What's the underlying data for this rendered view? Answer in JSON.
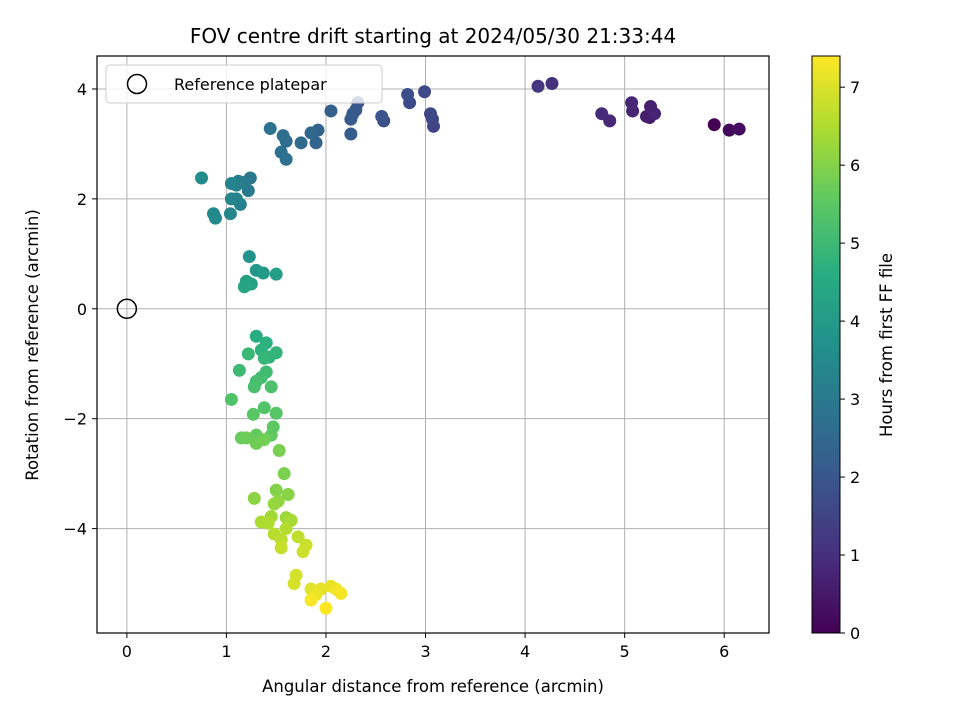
{
  "chart_data": {
    "type": "scatter",
    "title": "FOV centre drift starting at 2024/05/30 21:33:44",
    "xlabel": "Angular distance from reference (arcmin)",
    "ylabel": "Rotation from reference (arcmin)",
    "xlim": [
      -0.3,
      6.45
    ],
    "ylim": [
      -5.9,
      4.6
    ],
    "xticks": [
      0,
      1,
      2,
      3,
      4,
      5,
      6
    ],
    "yticks": [
      -4,
      -2,
      0,
      2,
      4
    ],
    "ytick_labels": [
      "−4",
      "−2",
      "0",
      "2",
      "4"
    ],
    "grid": true,
    "legend": {
      "position": "top-left",
      "entries": [
        "Reference platepar"
      ]
    },
    "reference_point": {
      "x": 0,
      "y": 0,
      "label": "Reference platepar"
    },
    "colorbar": {
      "label": "Hours from first FF file",
      "colormap": "viridis",
      "range": [
        0,
        7.4
      ],
      "ticks": [
        0,
        1,
        2,
        3,
        4,
        5,
        6,
        7
      ]
    },
    "series": [
      {
        "points": [
          [
            5.9,
            3.35,
            0.0
          ],
          [
            6.05,
            3.25,
            0.15
          ],
          [
            6.15,
            3.27,
            0.25
          ],
          [
            5.28,
            3.55,
            0.5
          ],
          [
            5.25,
            3.48,
            0.55
          ],
          [
            5.22,
            3.5,
            0.6
          ],
          [
            5.26,
            3.68,
            0.65
          ],
          [
            5.3,
            3.55,
            0.7
          ],
          [
            5.08,
            3.6,
            0.75
          ],
          [
            5.07,
            3.75,
            0.8
          ],
          [
            4.85,
            3.42,
            0.85
          ],
          [
            4.77,
            3.55,
            0.9
          ],
          [
            4.27,
            4.1,
            1.05
          ],
          [
            4.13,
            4.05,
            1.15
          ],
          [
            3.08,
            3.32,
            1.5
          ],
          [
            3.07,
            3.45,
            1.55
          ],
          [
            3.05,
            3.55,
            1.6
          ],
          [
            2.99,
            3.95,
            1.65
          ],
          [
            2.84,
            3.75,
            1.7
          ],
          [
            2.82,
            3.9,
            1.75
          ],
          [
            2.58,
            3.42,
            1.8
          ],
          [
            2.56,
            3.5,
            1.85
          ],
          [
            2.32,
            3.75,
            1.95
          ],
          [
            2.3,
            3.62,
            2.0
          ],
          [
            2.27,
            3.55,
            2.05
          ],
          [
            2.25,
            3.45,
            2.1
          ],
          [
            2.25,
            3.18,
            2.15
          ],
          [
            2.05,
            3.6,
            2.25
          ],
          [
            1.92,
            3.25,
            2.35
          ],
          [
            1.9,
            3.02,
            2.4
          ],
          [
            1.85,
            3.2,
            2.45
          ],
          [
            1.75,
            3.02,
            2.55
          ],
          [
            1.6,
            3.05,
            2.6
          ],
          [
            1.57,
            3.15,
            2.65
          ],
          [
            1.55,
            2.85,
            2.7
          ],
          [
            1.6,
            2.72,
            2.75
          ],
          [
            1.44,
            3.28,
            2.8
          ],
          [
            1.24,
            2.38,
            2.95
          ],
          [
            1.22,
            2.15,
            3.0
          ],
          [
            1.18,
            2.3,
            3.05
          ],
          [
            1.12,
            2.32,
            3.1
          ],
          [
            1.1,
            2.25,
            3.15
          ],
          [
            1.14,
            1.9,
            3.2
          ],
          [
            1.1,
            2.0,
            3.25
          ],
          [
            1.05,
            2.28,
            3.3
          ],
          [
            1.05,
            2.0,
            3.35
          ],
          [
            1.04,
            1.73,
            3.4
          ],
          [
            0.89,
            1.65,
            3.45
          ],
          [
            0.87,
            1.73,
            3.5
          ],
          [
            0.75,
            2.38,
            3.55
          ],
          [
            1.23,
            0.95,
            3.8
          ],
          [
            1.3,
            0.7,
            3.9
          ],
          [
            1.37,
            0.65,
            4.0
          ],
          [
            1.5,
            0.63,
            4.1
          ],
          [
            1.2,
            0.5,
            4.2
          ],
          [
            1.25,
            0.45,
            4.25
          ],
          [
            1.18,
            0.4,
            4.3
          ],
          [
            1.3,
            -0.5,
            4.6
          ],
          [
            1.4,
            -0.62,
            4.7
          ],
          [
            1.35,
            -0.75,
            4.75
          ],
          [
            1.43,
            -0.88,
            4.8
          ],
          [
            1.5,
            -0.8,
            4.85
          ],
          [
            1.38,
            -0.9,
            4.9
          ],
          [
            1.22,
            -0.82,
            4.95
          ],
          [
            1.13,
            -1.12,
            5.0
          ],
          [
            1.4,
            -1.15,
            5.05
          ],
          [
            1.35,
            -1.25,
            5.1
          ],
          [
            1.3,
            -1.32,
            5.15
          ],
          [
            1.28,
            -1.42,
            5.2
          ],
          [
            1.45,
            -1.42,
            5.25
          ],
          [
            1.05,
            -1.65,
            5.3
          ],
          [
            1.38,
            -1.8,
            5.35
          ],
          [
            1.5,
            -1.9,
            5.4
          ],
          [
            1.27,
            -1.92,
            5.45
          ],
          [
            1.47,
            -2.15,
            5.5
          ],
          [
            1.45,
            -2.3,
            5.55
          ],
          [
            1.3,
            -2.3,
            5.6
          ],
          [
            1.15,
            -2.35,
            5.65
          ],
          [
            1.2,
            -2.35,
            5.7
          ],
          [
            1.3,
            -2.45,
            5.75
          ],
          [
            1.38,
            -2.38,
            5.8
          ],
          [
            1.53,
            -2.58,
            5.85
          ],
          [
            1.58,
            -3.0,
            5.9
          ],
          [
            1.5,
            -3.3,
            6.0
          ],
          [
            1.62,
            -3.38,
            6.05
          ],
          [
            1.28,
            -3.45,
            6.1
          ],
          [
            1.52,
            -3.5,
            6.15
          ],
          [
            1.48,
            -3.55,
            6.2
          ],
          [
            1.6,
            -3.8,
            6.3
          ],
          [
            1.45,
            -3.78,
            6.35
          ],
          [
            1.65,
            -3.85,
            6.4
          ],
          [
            1.35,
            -3.88,
            6.45
          ],
          [
            1.42,
            -3.9,
            6.5
          ],
          [
            1.6,
            -4.0,
            6.55
          ],
          [
            1.48,
            -4.1,
            6.6
          ],
          [
            1.55,
            -4.2,
            6.65
          ],
          [
            1.72,
            -4.15,
            6.7
          ],
          [
            1.55,
            -4.35,
            6.75
          ],
          [
            1.8,
            -4.3,
            6.8
          ],
          [
            1.77,
            -4.42,
            6.85
          ],
          [
            1.7,
            -4.85,
            6.9
          ],
          [
            1.68,
            -5.0,
            6.95
          ],
          [
            1.85,
            -5.1,
            7.05
          ],
          [
            1.95,
            -5.1,
            7.1
          ],
          [
            2.05,
            -5.05,
            7.15
          ],
          [
            1.9,
            -5.2,
            7.2
          ],
          [
            2.1,
            -5.1,
            7.25
          ],
          [
            2.15,
            -5.18,
            7.3
          ],
          [
            1.85,
            -5.3,
            7.35
          ],
          [
            2.0,
            -5.45,
            7.4
          ]
        ]
      }
    ]
  }
}
